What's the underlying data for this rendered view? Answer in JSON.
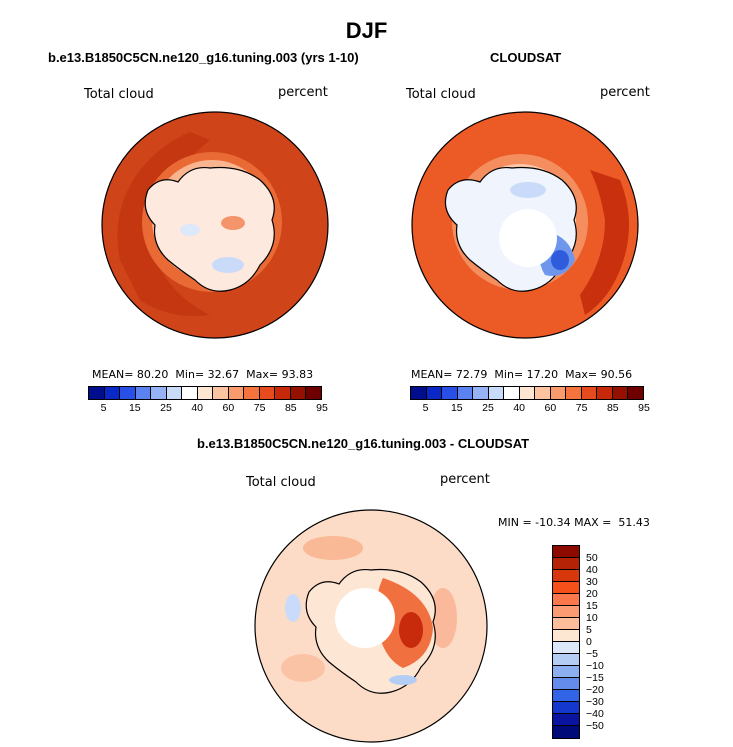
{
  "figure": {
    "season": "DJF",
    "panels": [
      {
        "title": "b.e13.B1850C5CN.ne120_g16.tuning.003 (yrs 1-10)",
        "variable": "Total cloud",
        "units": "percent",
        "mean_label": "MEAN=",
        "mean": "80.20",
        "min_label": "Min=",
        "min": "32.67",
        "max_label": "Max=",
        "max": "93.83"
      },
      {
        "title": "CLOUDSAT",
        "variable": "Total cloud",
        "units": "percent",
        "mean_label": "MEAN=",
        "mean": "72.79",
        "min_label": "Min=",
        "min": "17.20",
        "max_label": "Max=",
        "max": "90.56"
      }
    ],
    "diff_panel": {
      "title": "b.e13.B1850C5CN.ne120_g16.tuning.003 - CLOUDSAT",
      "variable": "Total cloud",
      "units": "percent",
      "minmax_text": "MIN = -10.34 MAX =  51.43"
    },
    "abs_colorbar": {
      "ticks": [
        "5",
        "15",
        "25",
        "40",
        "60",
        "75",
        "85",
        "95"
      ],
      "colors": [
        "#000d8c",
        "#0a28c8",
        "#2850e6",
        "#5a82f0",
        "#96b4f5",
        "#c8dcfa",
        "#ffffff",
        "#fde6d2",
        "#fcc3a0",
        "#fa9b6e",
        "#f5733c",
        "#e64b1e",
        "#c8280a",
        "#961000",
        "#6e0000"
      ]
    },
    "diff_colorbar": {
      "ticks": [
        "50",
        "40",
        "30",
        "20",
        "15",
        "10",
        "5",
        "0",
        "−5",
        "−10",
        "−15",
        "−20",
        "−30",
        "−40",
        "−50"
      ],
      "colors": [
        "#8c0a00",
        "#b42305",
        "#d7370a",
        "#f55019",
        "#fa784b",
        "#fa9b73",
        "#fcbe9b",
        "#fde6d2",
        "#dce8fa",
        "#b4cdf5",
        "#8cafef",
        "#648ceb",
        "#3264e6",
        "#1437cd",
        "#0a14a0",
        "#000a78"
      ]
    }
  }
}
